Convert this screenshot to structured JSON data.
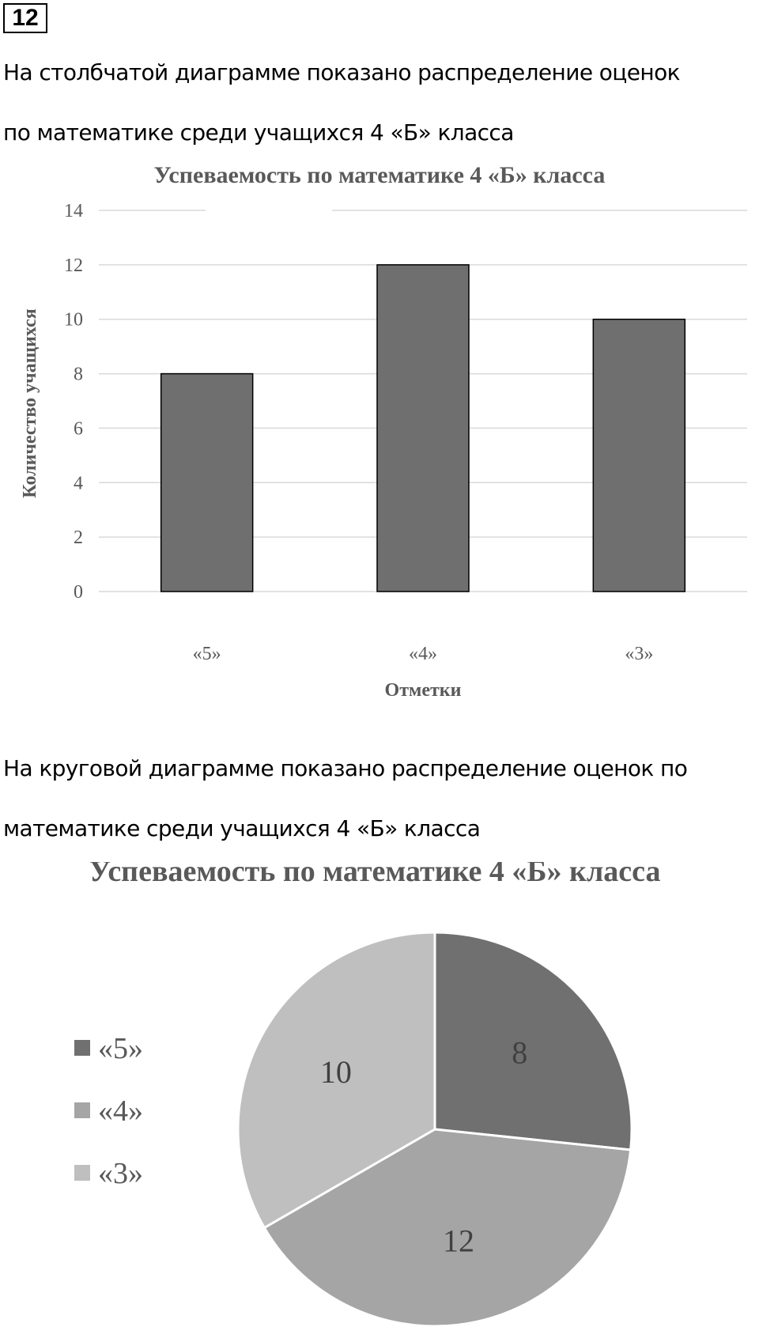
{
  "task": {
    "number": "12"
  },
  "text1": {
    "line1": "На столбчатой диаграмме показано распределение оценок",
    "line2": "по математике среди учащихся 4 «Б» класса"
  },
  "text2": {
    "line1": "На круговой диаграмме показано распределение оценок по",
    "line2": "математике среди учащихся 4 «Б» класса"
  },
  "chart_data": [
    {
      "type": "bar",
      "title": "Успеваемость по математике 4 «Б» класса",
      "xlabel": "Отметки",
      "ylabel": "Количество учащихся",
      "categories": [
        "«5»",
        "«4»",
        "«3»"
      ],
      "values": [
        8,
        12,
        10
      ],
      "ylim": [
        0,
        14
      ],
      "yticks": [
        "0",
        "2",
        "4",
        "6",
        "8",
        "10",
        "12",
        "14"
      ],
      "grid": true,
      "colors": {
        "bar": "#6f6f6f",
        "grid": "#d9d9d9",
        "text": "#595959"
      }
    },
    {
      "type": "pie",
      "title": "Успеваемость по математике 4 «Б» класса",
      "labels": [
        "«5»",
        "«4»",
        "«3»"
      ],
      "values": [
        8,
        12,
        10
      ],
      "data_labels": [
        "8",
        "12",
        "10"
      ],
      "legend": "left",
      "colors": [
        "#707070",
        "#a5a5a5",
        "#bfbfbf"
      ]
    }
  ]
}
